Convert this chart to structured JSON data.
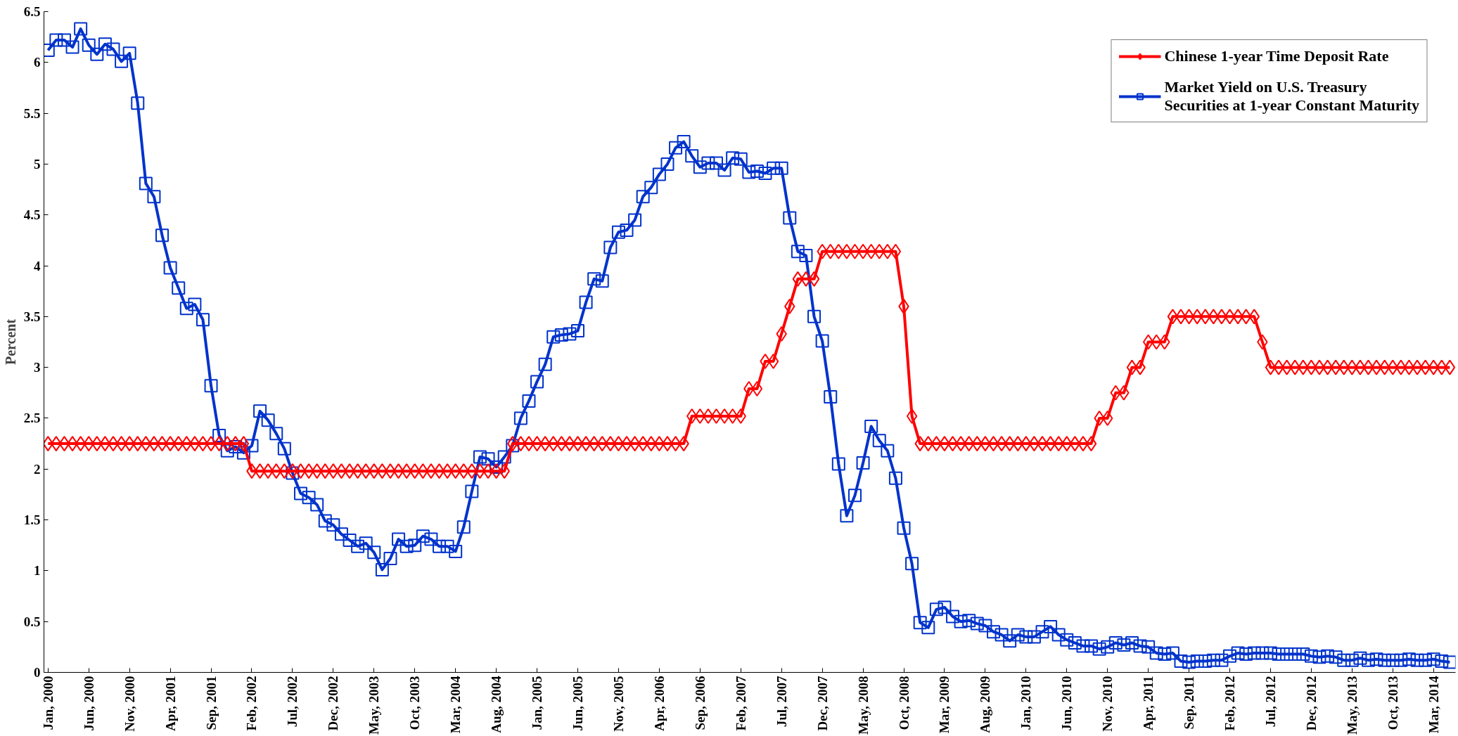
{
  "chart_data": {
    "type": "line",
    "ylabel": "Percent",
    "categories": [
      "Jan, 2000",
      null,
      null,
      null,
      null,
      "Jun, 2000",
      null,
      null,
      null,
      null,
      "Nov, 2000",
      null,
      null,
      null,
      null,
      "Apr, 2001",
      null,
      null,
      null,
      null,
      "Sep, 2001",
      null,
      null,
      null,
      null,
      "Feb, 2002",
      null,
      null,
      null,
      null,
      "Jul, 2002",
      null,
      null,
      null,
      null,
      "Dec, 2002",
      null,
      null,
      null,
      null,
      "May, 2003",
      null,
      null,
      null,
      null,
      "Oct, 2003",
      null,
      null,
      null,
      null,
      "Mar, 2004",
      null,
      null,
      null,
      null,
      "Aug, 2004",
      null,
      null,
      null,
      null,
      "Jan, 2005",
      null,
      null,
      null,
      null,
      "Jun, 2005",
      null,
      null,
      null,
      null,
      "Nov, 2005",
      null,
      null,
      null,
      null,
      "Apr, 2006",
      null,
      null,
      null,
      null,
      "Sep, 2006",
      null,
      null,
      null,
      null,
      "Feb, 2007",
      null,
      null,
      null,
      null,
      "Jul, 2007",
      null,
      null,
      null,
      null,
      "Dec, 2007",
      null,
      null,
      null,
      null,
      "May, 2008",
      null,
      null,
      null,
      null,
      "Oct, 2008",
      null,
      null,
      null,
      null,
      "Mar, 2009",
      null,
      null,
      null,
      null,
      "Aug, 2009",
      null,
      null,
      null,
      null,
      "Jan, 2010",
      null,
      null,
      null,
      null,
      "Jun, 2010",
      null,
      null,
      null,
      null,
      "Nov, 2010",
      null,
      null,
      null,
      null,
      "Apr, 2011",
      null,
      null,
      null,
      null,
      "Sep, 2011",
      null,
      null,
      null,
      null,
      "Feb, 2012",
      null,
      null,
      null,
      null,
      "Jul, 2012",
      null,
      null,
      null,
      null,
      "Dec, 2012",
      null,
      null,
      null,
      null,
      "May, 2013",
      null,
      null,
      null,
      null,
      "Oct, 2013",
      null,
      null,
      null,
      null,
      "Mar, 2014",
      null,
      null
    ],
    "series": [
      {
        "name": "Chinese 1-year Time Deposit Rate",
        "color": "#ff0000",
        "marker": "diamond",
        "values": [
          2.25,
          2.25,
          2.25,
          2.25,
          2.25,
          2.25,
          2.25,
          2.25,
          2.25,
          2.25,
          2.25,
          2.25,
          2.25,
          2.25,
          2.25,
          2.25,
          2.25,
          2.25,
          2.25,
          2.25,
          2.25,
          2.25,
          2.25,
          2.25,
          2.25,
          1.98,
          1.98,
          1.98,
          1.98,
          1.98,
          1.98,
          1.98,
          1.98,
          1.98,
          1.98,
          1.98,
          1.98,
          1.98,
          1.98,
          1.98,
          1.98,
          1.98,
          1.98,
          1.98,
          1.98,
          1.98,
          1.98,
          1.98,
          1.98,
          1.98,
          1.98,
          1.98,
          1.98,
          1.98,
          1.98,
          1.98,
          1.98,
          2.25,
          2.25,
          2.25,
          2.25,
          2.25,
          2.25,
          2.25,
          2.25,
          2.25,
          2.25,
          2.25,
          2.25,
          2.25,
          2.25,
          2.25,
          2.25,
          2.25,
          2.25,
          2.25,
          2.25,
          2.25,
          2.25,
          2.52,
          2.52,
          2.52,
          2.52,
          2.52,
          2.52,
          2.52,
          2.79,
          2.79,
          3.06,
          3.06,
          3.33,
          3.6,
          3.87,
          3.87,
          3.87,
          4.14,
          4.14,
          4.14,
          4.14,
          4.14,
          4.14,
          4.14,
          4.14,
          4.14,
          4.14,
          3.6,
          2.52,
          2.25,
          2.25,
          2.25,
          2.25,
          2.25,
          2.25,
          2.25,
          2.25,
          2.25,
          2.25,
          2.25,
          2.25,
          2.25,
          2.25,
          2.25,
          2.25,
          2.25,
          2.25,
          2.25,
          2.25,
          2.25,
          2.25,
          2.5,
          2.5,
          2.75,
          2.75,
          3.0,
          3.0,
          3.25,
          3.25,
          3.25,
          3.5,
          3.5,
          3.5,
          3.5,
          3.5,
          3.5,
          3.5,
          3.5,
          3.5,
          3.5,
          3.5,
          3.25,
          3.0,
          3.0,
          3.0,
          3.0,
          3.0,
          3.0,
          3.0,
          3.0,
          3.0,
          3.0,
          3.0,
          3.0,
          3.0,
          3.0,
          3.0,
          3.0,
          3.0,
          3.0,
          3.0,
          3.0,
          3.0,
          3.0,
          3.0
        ]
      },
      {
        "name": "Market Yield on U.S. Treasury Securities at 1-year Constant Maturity",
        "color": "#0033cc",
        "marker": "square",
        "values": [
          6.12,
          6.22,
          6.22,
          6.15,
          6.33,
          6.17,
          6.08,
          6.18,
          6.13,
          6.01,
          6.09,
          5.6,
          4.81,
          4.68,
          4.3,
          3.98,
          3.78,
          3.58,
          3.62,
          3.47,
          2.82,
          2.33,
          2.18,
          2.22,
          2.16,
          2.23,
          2.57,
          2.48,
          2.35,
          2.2,
          1.96,
          1.76,
          1.72,
          1.65,
          1.49,
          1.45,
          1.36,
          1.3,
          1.24,
          1.27,
          1.18,
          1.01,
          1.12,
          1.31,
          1.24,
          1.25,
          1.34,
          1.31,
          1.24,
          1.24,
          1.19,
          1.43,
          1.78,
          2.12,
          2.1,
          2.02,
          2.12,
          2.23,
          2.5,
          2.67,
          2.86,
          3.03,
          3.3,
          3.32,
          3.33,
          3.36,
          3.64,
          3.87,
          3.85,
          4.18,
          4.33,
          4.35,
          4.45,
          4.68,
          4.77,
          4.9,
          5.0,
          5.16,
          5.22,
          5.08,
          4.97,
          5.01,
          5.01,
          4.94,
          5.06,
          5.05,
          4.92,
          4.93,
          4.91,
          4.96,
          4.96,
          4.47,
          4.14,
          4.1,
          3.5,
          3.26,
          2.71,
          2.05,
          1.54,
          1.74,
          2.06,
          2.42,
          2.28,
          2.18,
          1.91,
          1.42,
          1.07,
          0.49,
          0.44,
          0.62,
          0.64,
          0.55,
          0.5,
          0.51,
          0.48,
          0.46,
          0.4,
          0.37,
          0.31,
          0.37,
          0.35,
          0.35,
          0.4,
          0.45,
          0.37,
          0.32,
          0.29,
          0.26,
          0.26,
          0.23,
          0.25,
          0.29,
          0.27,
          0.29,
          0.26,
          0.25,
          0.19,
          0.18,
          0.19,
          0.11,
          0.1,
          0.11,
          0.11,
          0.12,
          0.12,
          0.16,
          0.19,
          0.18,
          0.19,
          0.19,
          0.19,
          0.18,
          0.18,
          0.18,
          0.18,
          0.16,
          0.15,
          0.16,
          0.15,
          0.12,
          0.12,
          0.14,
          0.12,
          0.13,
          0.12,
          0.12,
          0.12,
          0.13,
          0.12,
          0.12,
          0.13,
          0.11,
          0.1
        ]
      }
    ],
    "ylim": [
      0,
      6.5
    ],
    "yticks": [
      0,
      0.5,
      1,
      1.5,
      2,
      2.5,
      3,
      3.5,
      4,
      4.5,
      5,
      5.5,
      6,
      6.5
    ],
    "grid": false,
    "legend": "top right",
    "line_style": "solid"
  }
}
